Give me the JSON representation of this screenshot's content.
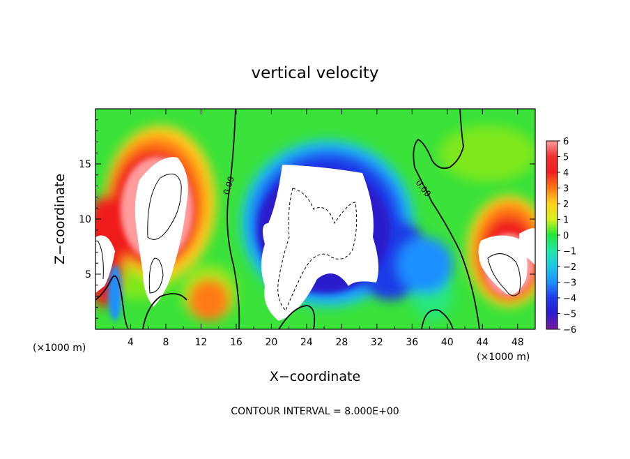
{
  "chart_data": {
    "type": "heatmap",
    "title": "vertical velocity",
    "xlabel": "X−coordinate",
    "ylabel": "Z−coordinate",
    "x_unit_left": "(×1000 m)",
    "x_unit_right": "(×1000 m)",
    "footer": "CONTOUR INTERVAL = 8.000E+00",
    "x_ticks": [
      "4",
      "8",
      "12",
      "16",
      "20",
      "24",
      "28",
      "32",
      "36",
      "40",
      "44",
      "48"
    ],
    "y_ticks": [
      "5",
      "10",
      "15"
    ],
    "xlim": [
      0,
      50
    ],
    "ylim": [
      0,
      20
    ],
    "colorbar": {
      "ticks": [
        "6",
        "5",
        "4",
        "3",
        "2",
        "1",
        "0",
        "−1",
        "−2",
        "−3",
        "−4",
        "−5",
        "−6"
      ],
      "range": [
        -6,
        6
      ]
    },
    "contour_labels": [
      "0.00",
      "0.00"
    ],
    "colors": {
      "neg6": "#7a1aa0",
      "neg5": "#2a1acc",
      "neg4": "#1f3be8",
      "neg3": "#1e90ff",
      "neg2": "#1ec8e6",
      "neg1": "#22e6a8",
      "zero": "#22e63a",
      "pos1": "#7ee81e",
      "pos2": "#d8f01e",
      "pos3": "#ffd21e",
      "pos4": "#ff7a14",
      "pos5": "#f01e1e",
      "pos6": "#ff9c9c"
    }
  }
}
